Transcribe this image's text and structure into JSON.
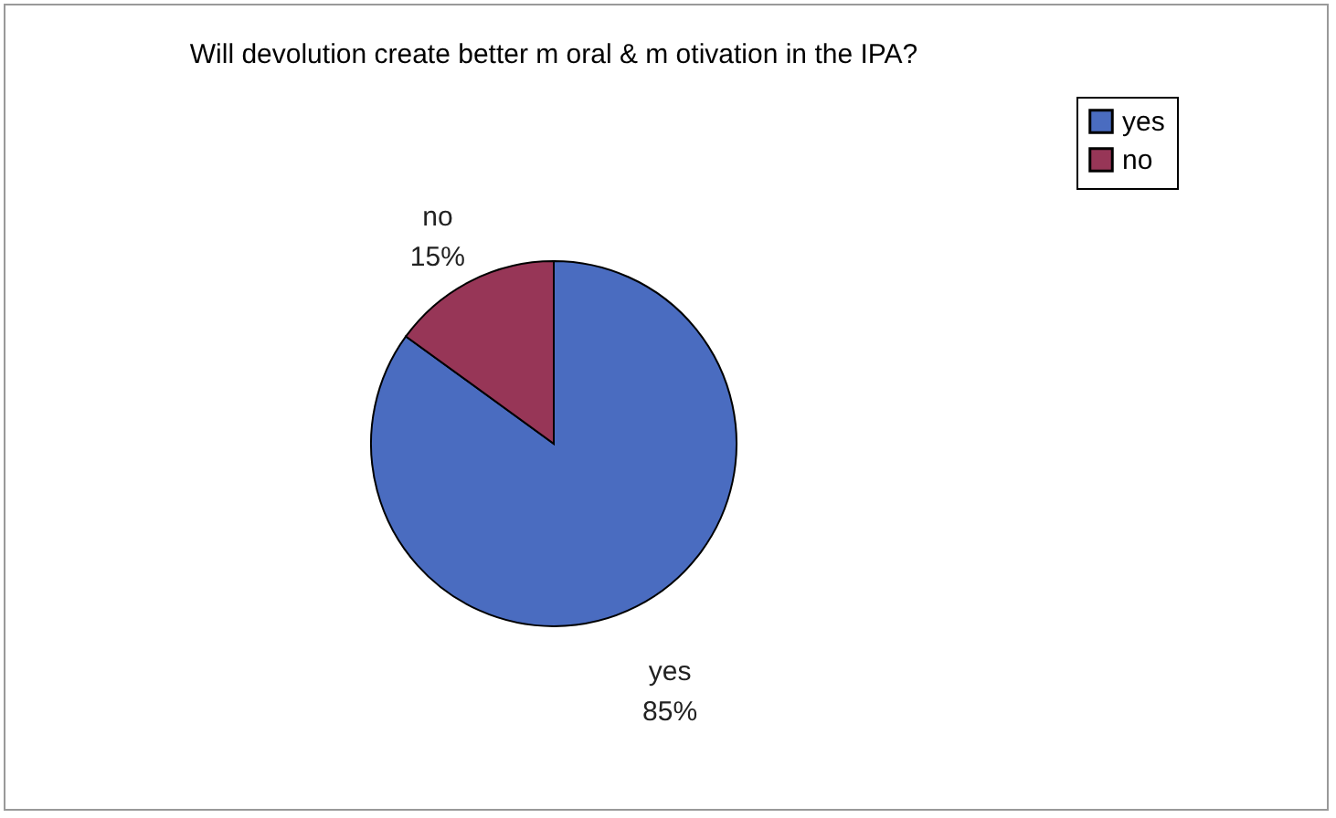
{
  "chart_data": {
    "type": "pie",
    "title": "Will devolution create better m oral & m otivation in the IPA?",
    "categories": [
      "yes",
      "no"
    ],
    "values": [
      85,
      15
    ],
    "colors": [
      "#4a6cc0",
      "#973657"
    ],
    "value_labels": [
      "85%",
      "15%"
    ],
    "legend": "right"
  }
}
